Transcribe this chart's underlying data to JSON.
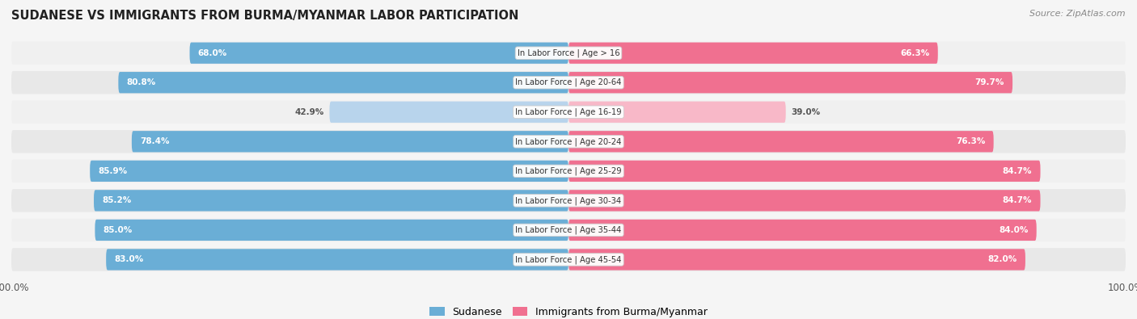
{
  "title": "SUDANESE VS IMMIGRANTS FROM BURMA/MYANMAR LABOR PARTICIPATION",
  "source": "Source: ZipAtlas.com",
  "categories": [
    "In Labor Force | Age > 16",
    "In Labor Force | Age 20-64",
    "In Labor Force | Age 16-19",
    "In Labor Force | Age 20-24",
    "In Labor Force | Age 25-29",
    "In Labor Force | Age 30-34",
    "In Labor Force | Age 35-44",
    "In Labor Force | Age 45-54"
  ],
  "sudanese": [
    68.0,
    80.8,
    42.9,
    78.4,
    85.9,
    85.2,
    85.0,
    83.0
  ],
  "burma": [
    66.3,
    79.7,
    39.0,
    76.3,
    84.7,
    84.7,
    84.0,
    82.0
  ],
  "sudanese_color_dark": "#6aaed6",
  "sudanese_color_light": "#b8d4ec",
  "burma_color_dark": "#f07090",
  "burma_color_light": "#f8b8c8",
  "threshold": 60,
  "row_colors": [
    "#f0f0f0",
    "#e8e8e8"
  ],
  "bg_color": "#f5f5f5",
  "legend_sudanese": "Sudanese",
  "legend_burma": "Immigrants from Burma/Myanmar"
}
